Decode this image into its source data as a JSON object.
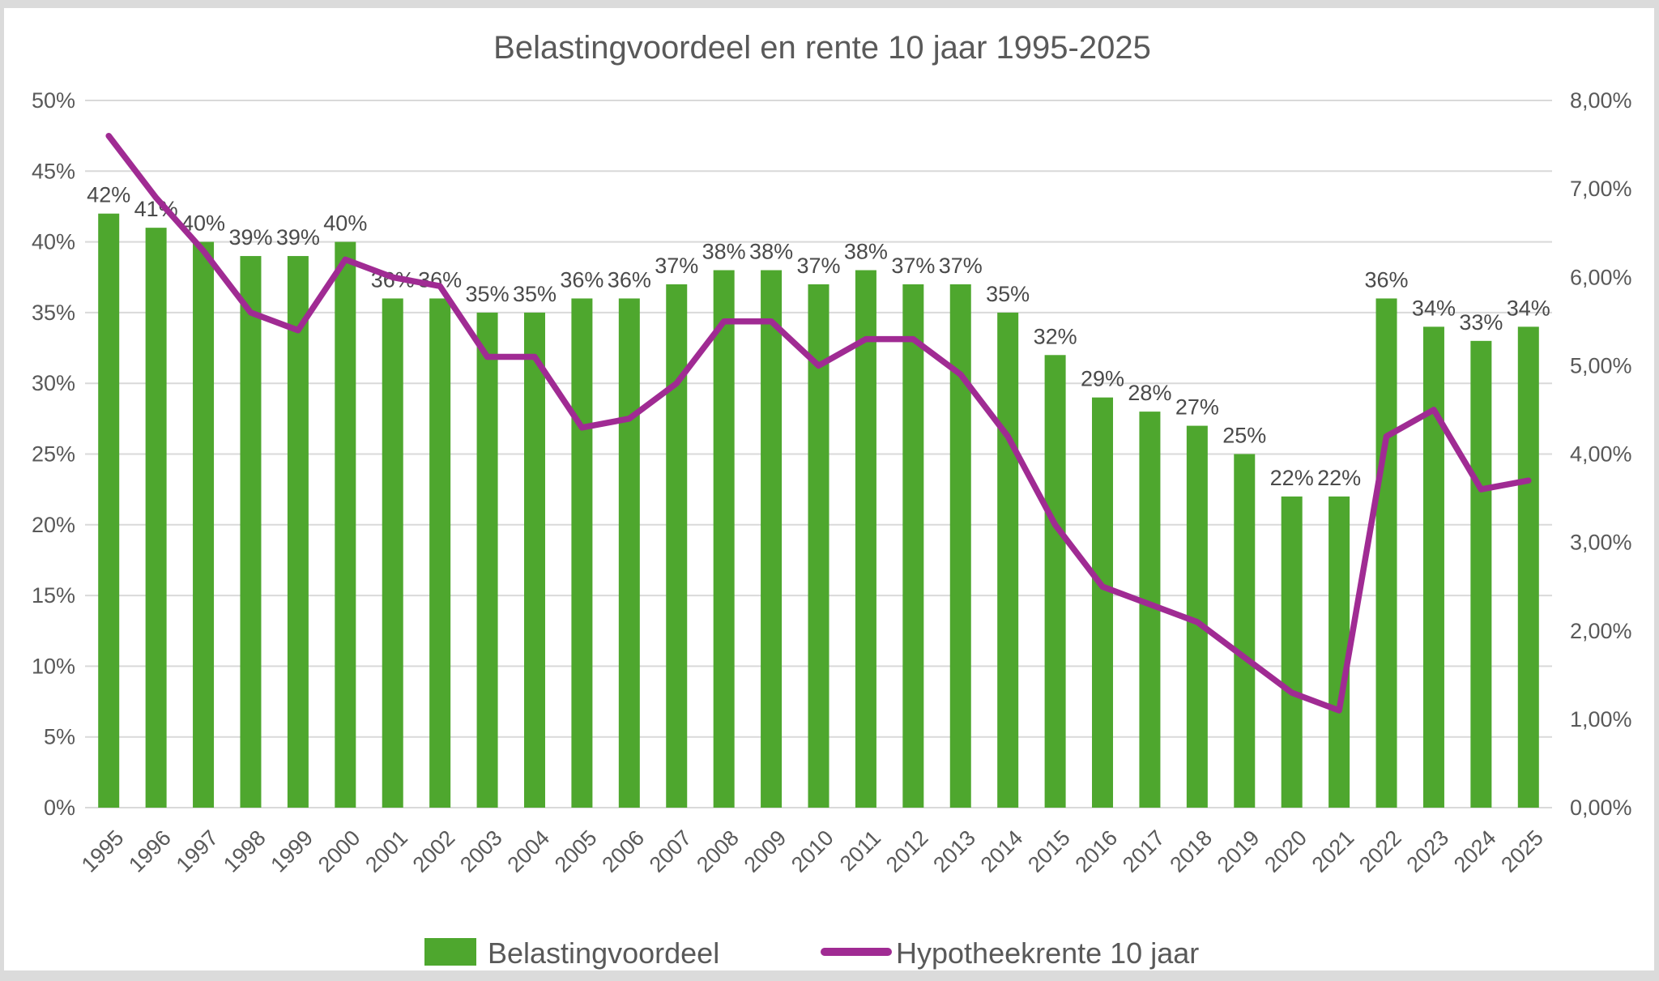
{
  "chart_data": {
    "type": "bar",
    "combo": "bar+line",
    "title": "Belastingvoordeel en rente 10 jaar 1995-2025",
    "categories": [
      "1995",
      "1996",
      "1997",
      "1998",
      "1999",
      "2000",
      "2001",
      "2002",
      "2003",
      "2004",
      "2005",
      "2006",
      "2007",
      "2008",
      "2009",
      "2010",
      "2011",
      "2012",
      "2013",
      "2014",
      "2015",
      "2016",
      "2017",
      "2018",
      "2019",
      "2020",
      "2021",
      "2022",
      "2023",
      "2024",
      "2025"
    ],
    "series": [
      {
        "name": "Belastingvoordeel",
        "type": "bar",
        "axis": "left",
        "color": "#4EA72E",
        "values": [
          42,
          41,
          40,
          39,
          39,
          40,
          36,
          36,
          35,
          35,
          36,
          36,
          37,
          38,
          38,
          37,
          38,
          37,
          37,
          35,
          32,
          29,
          28,
          27,
          25,
          22,
          22,
          36,
          34,
          33,
          34
        ],
        "labels": [
          "42%",
          "41%",
          "40%",
          "39%",
          "39%",
          "40%",
          "36%",
          "36%",
          "35%",
          "35%",
          "36%",
          "36%",
          "37%",
          "38%",
          "38%",
          "37%",
          "38%",
          "37%",
          "37%",
          "35%",
          "32%",
          "29%",
          "28%",
          "27%",
          "25%",
          "22%",
          "22%",
          "36%",
          "34%",
          "33%",
          "34%"
        ]
      },
      {
        "name": "Hypotheekrente 10 jaar",
        "type": "line",
        "axis": "right",
        "color": "#A02B93",
        "values": [
          7.6,
          6.9,
          6.3,
          5.6,
          5.4,
          6.2,
          6.0,
          5.9,
          5.1,
          5.1,
          4.3,
          4.4,
          4.8,
          5.5,
          5.5,
          5.0,
          5.3,
          5.3,
          4.9,
          4.2,
          3.2,
          2.5,
          2.3,
          2.1,
          1.7,
          1.3,
          1.1,
          4.2,
          4.5,
          3.6,
          3.7
        ]
      }
    ],
    "left_axis": {
      "min": 0,
      "max": 50,
      "step": 5,
      "ticks": [
        "0%",
        "5%",
        "10%",
        "15%",
        "20%",
        "25%",
        "30%",
        "35%",
        "40%",
        "45%",
        "50%"
      ]
    },
    "right_axis": {
      "min": 0,
      "max": 8,
      "step": 1,
      "ticks": [
        "0,00%",
        "1,00%",
        "2,00%",
        "3,00%",
        "4,00%",
        "5,00%",
        "6,00%",
        "7,00%",
        "8,00%"
      ]
    },
    "grid": true,
    "legend_position": "bottom",
    "legend": [
      {
        "label": "Belastingvoordeel",
        "marker": "square",
        "color": "#4EA72E"
      },
      {
        "label": "Hypotheekrente 10 jaar",
        "marker": "line",
        "color": "#A02B93"
      }
    ]
  },
  "colors": {
    "background": "#FFFFFF",
    "frame": "#DBDBDB",
    "gridline": "#D9D9D9",
    "axis_text": "#595959",
    "data_label": "#4A4A4A",
    "title_text": "#595959",
    "bar": "#4EA72E",
    "line": "#A02B93"
  }
}
